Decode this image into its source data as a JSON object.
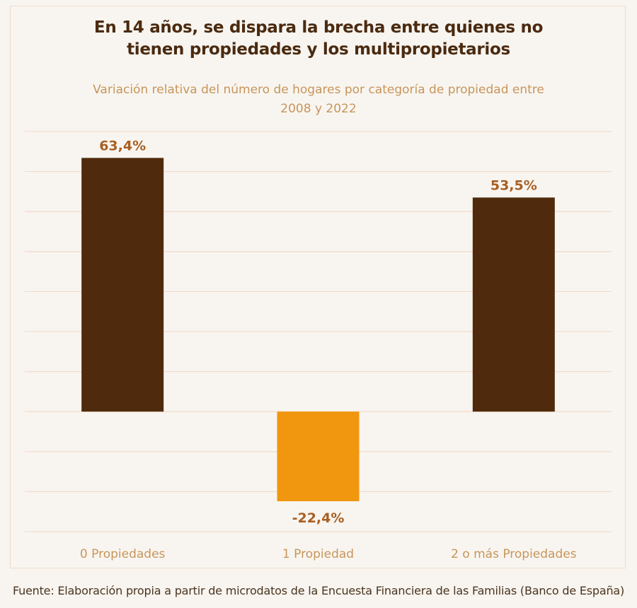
{
  "header": {
    "title_line1": "En 14 años, se dispara la brecha entre quienes no",
    "title_line2": "tienen propiedades y los multipropietarios",
    "subtitle_line1": "Variación relativa del número de hogares por categoría de propiedad entre",
    "subtitle_line2": "2008 y 2022"
  },
  "footer": {
    "source": "Fuente: Elaboración propia a partir de microdatos de la Encuesta Financiera de las Familias (Banco de España)"
  },
  "chart_data": {
    "type": "bar",
    "title": "En 14 años, se dispara la brecha entre quienes no tienen propiedades y los multipropietarios",
    "subtitle": "Variación relativa del número de hogares por categoría de propiedad entre 2008 y 2022",
    "categories": [
      "0 Propiedades",
      "1 Propiedad",
      "2 o más Propiedades"
    ],
    "values": [
      63.4,
      -22.4,
      53.5
    ],
    "data_labels": [
      "63,4%",
      "-22,4%",
      "53,5%"
    ],
    "bar_colors": [
      "#4f2a0c",
      "#f0960f",
      "#4f2a0c"
    ],
    "unit": "%",
    "ylim": [
      -30,
      70
    ],
    "gridline_step": 10,
    "grid": true,
    "y_tick_labels_shown": false,
    "legend": "none",
    "xlabel": "",
    "ylabel": "",
    "colors": {
      "grid": "#f3dccb",
      "label": "#a85f22",
      "category_label": "#c8955a",
      "title": "#4a2a10"
    }
  }
}
